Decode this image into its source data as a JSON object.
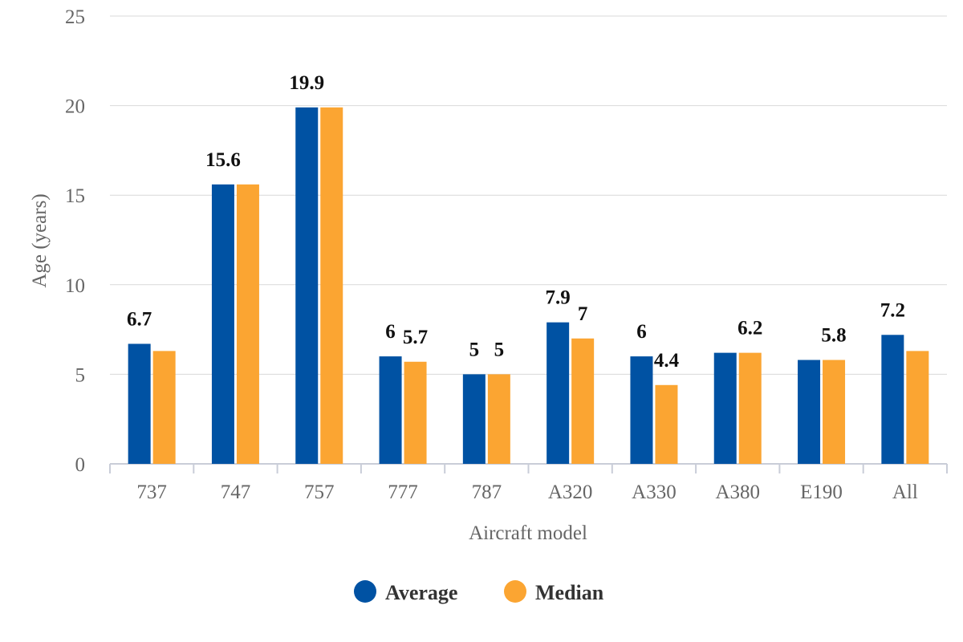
{
  "chart_data": {
    "type": "bar",
    "title": "",
    "xlabel": "Aircraft model",
    "ylabel": "Age (years)",
    "ylim": [
      0,
      25
    ],
    "yticks": [
      0,
      5,
      10,
      15,
      20,
      25
    ],
    "grid": true,
    "legend_position": "bottom-center",
    "categories": [
      "737",
      "747",
      "757",
      "777",
      "787",
      "A320",
      "A330",
      "A380",
      "E190",
      "All"
    ],
    "series": [
      {
        "name": "Average",
        "color": "#0052a3",
        "values": [
          6.7,
          15.6,
          19.9,
          6,
          5,
          7.9,
          6,
          6.2,
          5.8,
          7.2
        ],
        "labels": [
          "6.7",
          "15.6",
          "19.9",
          "6",
          "5",
          "7.9",
          "6",
          "",
          "",
          "7.2"
        ]
      },
      {
        "name": "Median",
        "color": "#fba532",
        "values": [
          6.3,
          15.6,
          19.9,
          5.7,
          5,
          7,
          4.4,
          6.2,
          5.8,
          6.3
        ],
        "labels": [
          "",
          "",
          "",
          "5.7",
          "5",
          "7",
          "4.4",
          "6.2",
          "5.8",
          ""
        ]
      }
    ]
  }
}
